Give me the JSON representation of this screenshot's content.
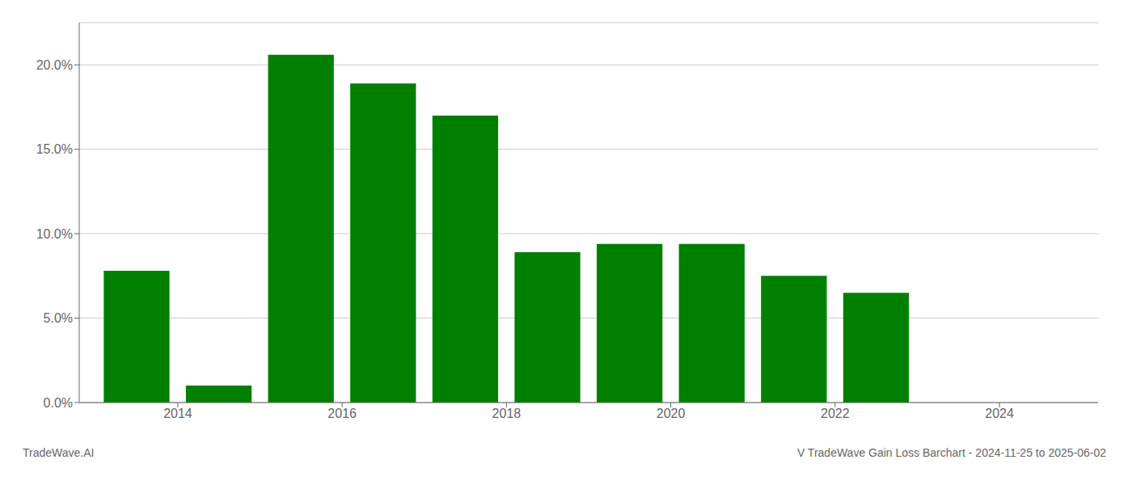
{
  "chart_data": {
    "type": "bar",
    "title": "V TradeWave Gain Loss Barchart - 2024-11-25 to 2025-06-02",
    "annotations": [
      "TradeWave.AI"
    ],
    "x": [
      2013.5,
      2014.5,
      2015.5,
      2016.5,
      2017.5,
      2018.5,
      2019.5,
      2020.5,
      2021.5,
      2022.5,
      2023.5
    ],
    "values": [
      0.078,
      0.01,
      0.206,
      0.189,
      0.17,
      0.089,
      0.094,
      0.094,
      0.075,
      0.065,
      0.0
    ],
    "color": "#008000",
    "xlim": [
      2012.8,
      2025.2
    ],
    "xticks": [
      2014,
      2016,
      2018,
      2020,
      2022,
      2024
    ],
    "ylim": [
      0,
      0.225
    ],
    "yticks": [
      {
        "value": 0.0,
        "label": "0.0%"
      },
      {
        "value": 0.05,
        "label": "5.0%"
      },
      {
        "value": 0.1,
        "label": "10.0%"
      },
      {
        "value": 0.15,
        "label": "15.0%"
      },
      {
        "value": 0.2,
        "label": "20.0%"
      }
    ],
    "grid": true
  }
}
